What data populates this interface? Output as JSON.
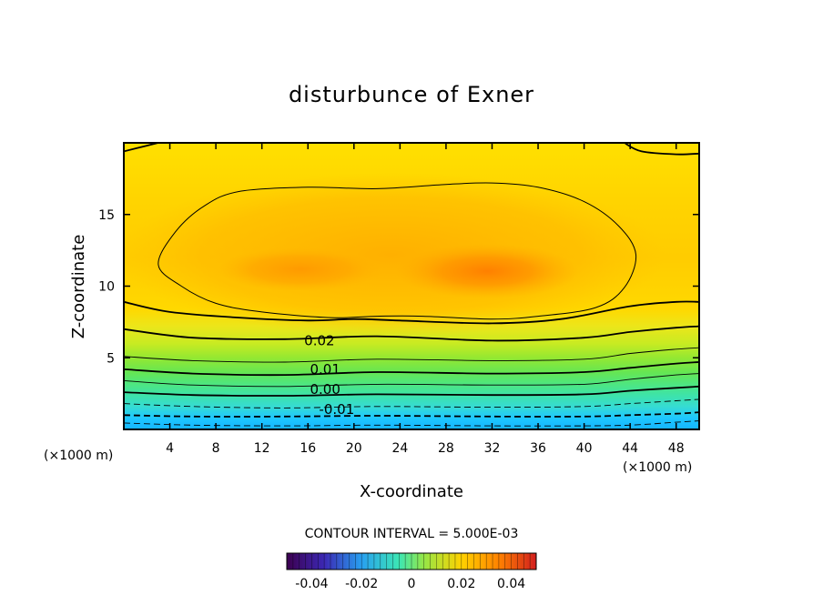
{
  "chart_data": {
    "type": "contour",
    "title": "disturbunce of Exner",
    "xlabel": "X-coordinate",
    "ylabel": "Z-coordinate",
    "x_unit": "(×1000 m)",
    "y_unit": "(×1000 m)",
    "xlim": [
      0,
      50
    ],
    "ylim": [
      0,
      20
    ],
    "x_ticks": [
      4,
      8,
      12,
      16,
      20,
      24,
      28,
      32,
      36,
      40,
      44,
      48
    ],
    "y_ticks": [
      5,
      10,
      15
    ],
    "contour_interval_text": "CONTOUR INTERVAL = 5.000E-03",
    "contour_labels": [
      {
        "text": "0.02",
        "x": 17.0,
        "z": 6.2
      },
      {
        "text": "0.01",
        "x": 17.5,
        "z": 4.2
      },
      {
        "text": "0.00",
        "x": 17.5,
        "z": 2.8
      },
      {
        "text": "-0.01",
        "x": 18.5,
        "z": 1.4
      }
    ],
    "contour_lines": [
      {
        "level": -0.015,
        "style": "dashed",
        "weight": "thin",
        "z_profile": [
          [
            0,
            0.45
          ],
          [
            6,
            0.3
          ],
          [
            14,
            0.25
          ],
          [
            22,
            0.3
          ],
          [
            32,
            0.25
          ],
          [
            40,
            0.25
          ],
          [
            44,
            0.3
          ],
          [
            48,
            0.5
          ],
          [
            50,
            0.6
          ]
        ]
      },
      {
        "level": -0.01,
        "style": "dashed",
        "weight": "thick",
        "z_profile": [
          [
            0,
            1.0
          ],
          [
            6,
            0.9
          ],
          [
            14,
            0.9
          ],
          [
            22,
            0.95
          ],
          [
            32,
            0.9
          ],
          [
            40,
            0.9
          ],
          [
            44,
            1.0
          ],
          [
            48,
            1.1
          ],
          [
            50,
            1.2
          ]
        ]
      },
      {
        "level": -0.005,
        "style": "dashed",
        "weight": "thin",
        "z_profile": [
          [
            0,
            1.8
          ],
          [
            6,
            1.6
          ],
          [
            14,
            1.5
          ],
          [
            22,
            1.6
          ],
          [
            32,
            1.55
          ],
          [
            40,
            1.6
          ],
          [
            44,
            1.8
          ],
          [
            48,
            2.0
          ],
          [
            50,
            2.1
          ]
        ]
      },
      {
        "level": 0.0,
        "style": "solid",
        "weight": "thick",
        "z_profile": [
          [
            0,
            2.6
          ],
          [
            6,
            2.4
          ],
          [
            14,
            2.35
          ],
          [
            22,
            2.45
          ],
          [
            32,
            2.4
          ],
          [
            40,
            2.45
          ],
          [
            44,
            2.7
          ],
          [
            48,
            2.9
          ],
          [
            50,
            3.0
          ]
        ]
      },
      {
        "level": 0.005,
        "style": "solid",
        "weight": "thin",
        "z_profile": [
          [
            0,
            3.4
          ],
          [
            6,
            3.1
          ],
          [
            14,
            3.0
          ],
          [
            22,
            3.15
          ],
          [
            32,
            3.1
          ],
          [
            40,
            3.15
          ],
          [
            44,
            3.5
          ],
          [
            48,
            3.8
          ],
          [
            50,
            3.9
          ]
        ]
      },
      {
        "level": 0.01,
        "style": "solid",
        "weight": "thick",
        "z_profile": [
          [
            0,
            4.2
          ],
          [
            6,
            3.9
          ],
          [
            14,
            3.8
          ],
          [
            22,
            4.0
          ],
          [
            32,
            3.9
          ],
          [
            40,
            4.0
          ],
          [
            44,
            4.3
          ],
          [
            48,
            4.6
          ],
          [
            50,
            4.7
          ]
        ]
      },
      {
        "level": 0.015,
        "style": "solid",
        "weight": "thin",
        "z_profile": [
          [
            0,
            5.1
          ],
          [
            6,
            4.8
          ],
          [
            14,
            4.7
          ],
          [
            22,
            4.9
          ],
          [
            32,
            4.8
          ],
          [
            40,
            4.9
          ],
          [
            44,
            5.3
          ],
          [
            48,
            5.6
          ],
          [
            50,
            5.7
          ]
        ]
      },
      {
        "level": 0.02,
        "style": "solid",
        "weight": "thick",
        "z_profile": [
          [
            0,
            7.0
          ],
          [
            6,
            6.4
          ],
          [
            14,
            6.3
          ],
          [
            22,
            6.5
          ],
          [
            32,
            6.2
          ],
          [
            40,
            6.4
          ],
          [
            44,
            6.8
          ],
          [
            48,
            7.1
          ],
          [
            50,
            7.2
          ]
        ]
      },
      {
        "level": 0.025,
        "style": "solid",
        "weight": "thick",
        "z_profile": [
          [
            0,
            8.9
          ],
          [
            4,
            8.2
          ],
          [
            10,
            7.8
          ],
          [
            16,
            7.6
          ],
          [
            20,
            7.7
          ],
          [
            24,
            7.6
          ],
          [
            32,
            7.4
          ],
          [
            38,
            7.7
          ],
          [
            44,
            8.6
          ],
          [
            48,
            8.9
          ],
          [
            50,
            8.9
          ]
        ]
      }
    ],
    "closed_contour": {
      "level": 0.03,
      "points": [
        [
          3.0,
          11.5
        ],
        [
          4.5,
          13.8
        ],
        [
          7,
          15.6
        ],
        [
          10,
          16.6
        ],
        [
          16,
          16.9
        ],
        [
          22,
          16.8
        ],
        [
          28,
          17.1
        ],
        [
          32,
          17.2
        ],
        [
          36,
          16.9
        ],
        [
          40,
          15.9
        ],
        [
          43,
          14.2
        ],
        [
          44.5,
          12.2
        ],
        [
          43.5,
          9.9
        ],
        [
          41,
          8.5
        ],
        [
          36,
          7.9
        ],
        [
          32,
          7.7
        ],
        [
          26,
          7.9
        ],
        [
          22,
          7.9
        ],
        [
          18,
          7.8
        ],
        [
          12,
          8.2
        ],
        [
          8,
          8.8
        ],
        [
          5,
          10.0
        ]
      ]
    },
    "top_contour": {
      "level": 0.025,
      "points": [
        [
          0,
          19.4
        ],
        [
          2,
          19.8
        ],
        [
          3,
          20.0
        ]
      ],
      "points2": [
        [
          43.5,
          20.0
        ],
        [
          45,
          19.4
        ],
        [
          48,
          19.2
        ],
        [
          50,
          19.25
        ]
      ]
    },
    "colorbar": {
      "min": -0.05,
      "max": 0.05,
      "tick_labels": [
        "-0.04",
        "-0.02",
        "0",
        "0.02",
        "0.04"
      ],
      "tick_values": [
        -0.04,
        -0.02,
        0,
        0.02,
        0.04
      ]
    }
  },
  "colors": {
    "fill_bands": [
      "#1ec8ff",
      "#32d7e6",
      "#3ce1c3",
      "#4be69b",
      "#5fe664",
      "#82e641",
      "#b4eb28",
      "#dceb1e",
      "#fadc00",
      "#ffc300",
      "#ffaa00",
      "#ff9100"
    ],
    "axis": "#000000"
  }
}
